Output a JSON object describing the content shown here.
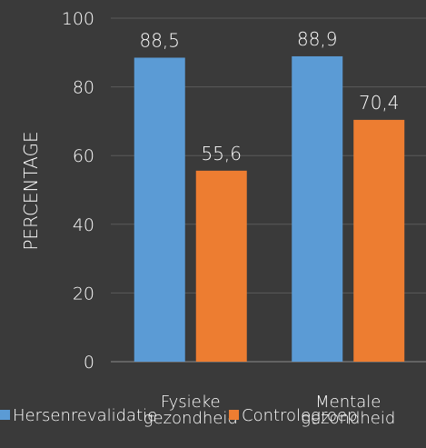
{
  "chart_data": {
    "type": "bar",
    "categories": [
      [
        "Fysieke",
        "gezondheid"
      ],
      [
        "Mentale",
        "gezondheid"
      ]
    ],
    "series": [
      {
        "name": "Hersenrevalidatie",
        "values": [
          88.5,
          88.9
        ],
        "labels": [
          "88,5",
          "88,9"
        ],
        "color": "#5b9bd5"
      },
      {
        "name": "Controlegroep",
        "values": [
          55.6,
          70.4
        ],
        "labels": [
          "55,6",
          "70,4"
        ],
        "color": "#ed7d31"
      }
    ],
    "ylabel": "PERCENTAGE",
    "ylim": [
      0,
      100
    ],
    "yticks": [
      0,
      20,
      40,
      60,
      80,
      100
    ],
    "grid": true,
    "legend_position": "bottom",
    "colors": {
      "background": "#3a3a3a",
      "grid": "#5a5a5a",
      "axis": "#8c8c8c",
      "text": "#ffffff"
    }
  }
}
